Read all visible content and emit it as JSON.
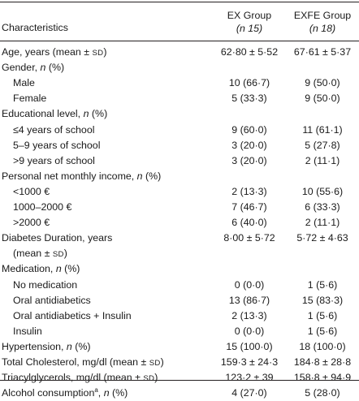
{
  "table": {
    "headers": {
      "characteristics": "Characteristics",
      "ex": {
        "name": "EX Group",
        "n": "(n 15)"
      },
      "exfe": {
        "name": "EXFE Group",
        "n": "(n 18)"
      }
    },
    "rows": [
      {
        "label": "Age, years (mean ± sd)",
        "ex": "62·80 ± 5·52",
        "exfe": "67·61 ± 5·37",
        "indent": false
      },
      {
        "label": "Gender, n (%)",
        "ex": "",
        "exfe": "",
        "indent": false
      },
      {
        "label": "Male",
        "ex": "10 (66·7)",
        "exfe": "9 (50·0)",
        "indent": true
      },
      {
        "label": "Female",
        "ex": "5 (33·3)",
        "exfe": "9 (50·0)",
        "indent": true
      },
      {
        "label": "Educational level, n (%)",
        "ex": "",
        "exfe": "",
        "indent": false
      },
      {
        "label": "≤4 years of school",
        "ex": "9 (60·0)",
        "exfe": "11 (61·1)",
        "indent": true
      },
      {
        "label": "5–9 years of school",
        "ex": "3 (20·0)",
        "exfe": "5 (27·8)",
        "indent": true
      },
      {
        "label": ">9 years of school",
        "ex": "3 (20·0)",
        "exfe": "2 (11·1)",
        "indent": true
      },
      {
        "label": "Personal net monthly income, n (%)",
        "ex": "",
        "exfe": "",
        "indent": false
      },
      {
        "label": "<1000 €",
        "ex": "2 (13·3)",
        "exfe": "10 (55·6)",
        "indent": true
      },
      {
        "label": "1000–2000 €",
        "ex": "7 (46·7)",
        "exfe": "6 (33·3)",
        "indent": true
      },
      {
        "label": ">2000 €",
        "ex": "6 (40·0)",
        "exfe": "2 (11·1)",
        "indent": true
      },
      {
        "label": "Diabetes Duration, years",
        "ex": "8·00 ± 5·72",
        "exfe": "5·72 ± 4·63",
        "indent": false
      },
      {
        "label": "(mean ± sd)",
        "ex": "",
        "exfe": "",
        "indent": true
      },
      {
        "label": "Medication, n (%)",
        "ex": "",
        "exfe": "",
        "indent": false
      },
      {
        "label": "No medication",
        "ex": "0 (0·0)",
        "exfe": "1 (5·6)",
        "indent": true
      },
      {
        "label": "Oral antidiabetics",
        "ex": "13 (86·7)",
        "exfe": "15 (83·3)",
        "indent": true
      },
      {
        "label": "Oral antidiabetics + Insulin",
        "ex": "2 (13·3)",
        "exfe": "1 (5·6)",
        "indent": true
      },
      {
        "label": "Insulin",
        "ex": "0 (0·0)",
        "exfe": "1 (5·6)",
        "indent": true
      },
      {
        "label": "Hypertension, n (%)",
        "ex": "15 (100·0)",
        "exfe": "18 (100·0)",
        "indent": false
      },
      {
        "label": "Total Cholesterol, mg/dl (mean ± sd)",
        "ex": "159·3 ± 24·3",
        "exfe": "184·8 ± 28·8",
        "indent": false
      },
      {
        "label": "Triacylglycerols, mg/dl (mean ± sd)",
        "ex": "123·2 ± 39",
        "exfe": "158·8 ± 94·9",
        "indent": false
      },
      {
        "label": "Alcohol consumptiona, n (%)",
        "ex": "4 (27·0)",
        "exfe": "5 (28·0)",
        "indent": false
      }
    ]
  }
}
